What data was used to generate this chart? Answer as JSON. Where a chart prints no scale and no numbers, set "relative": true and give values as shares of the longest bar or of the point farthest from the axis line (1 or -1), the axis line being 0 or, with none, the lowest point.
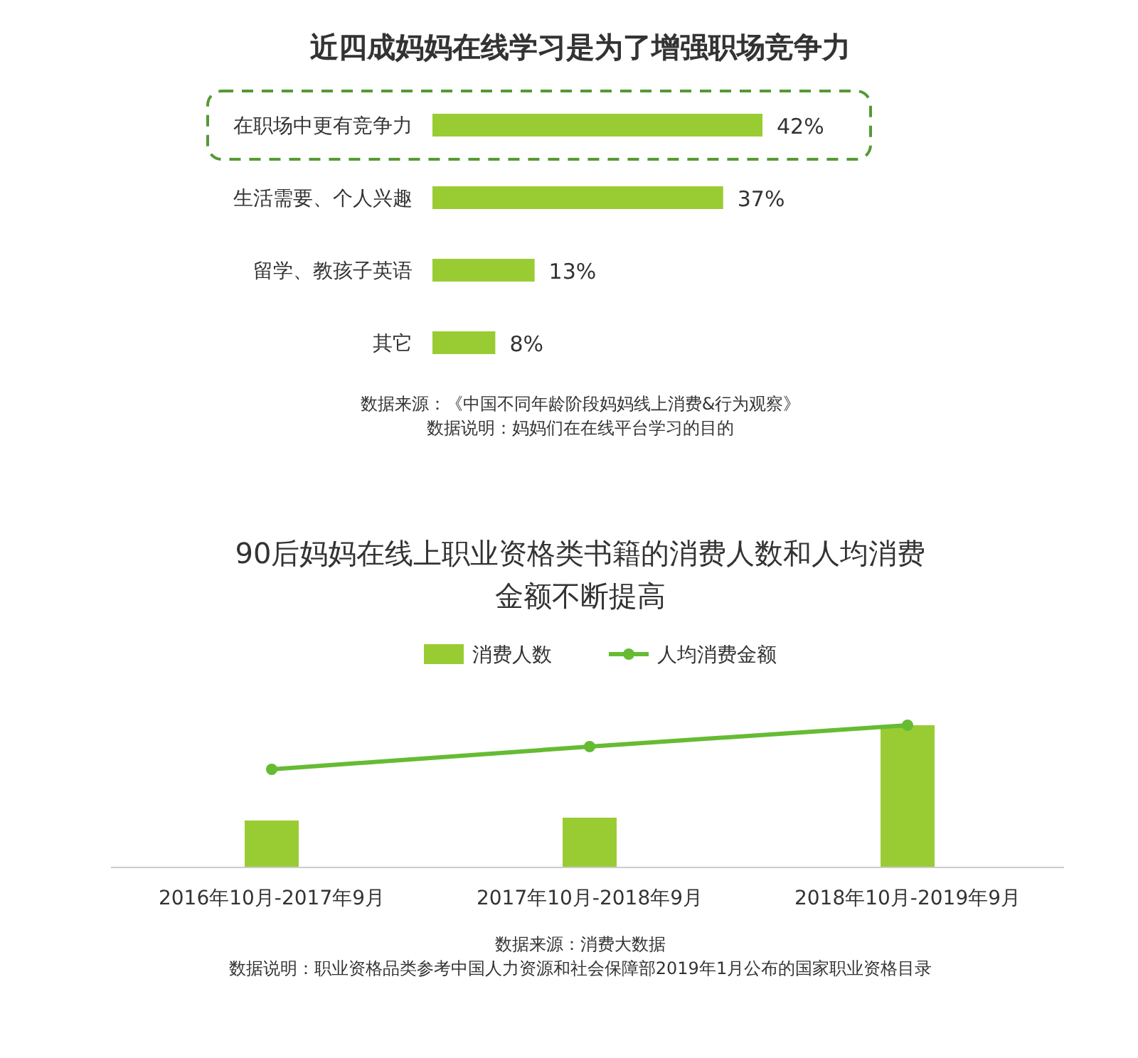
{
  "chart_data": [
    {
      "type": "bar",
      "orientation": "horizontal",
      "title": "近四成妈妈在线学习是为了增强职场竞争力",
      "categories": [
        "在职场中更有竞争力",
        "生活需要、个人兴趣",
        "留学、教孩子英语",
        "其它"
      ],
      "values": [
        42,
        37,
        13,
        8
      ],
      "color": "#99cc33",
      "data_labels": true,
      "value_labels": [
        "42%",
        "37%",
        "13%",
        "8%"
      ],
      "annotations": [
        "数据来源：《中国不同年龄阶段妈妈线上消费&行为观察》",
        "数据说明：妈妈们在在线平台学习的目的"
      ]
    },
    {
      "type": "bar",
      "relative": true,
      "title": "90后妈妈在线上职业资格类书籍的消费人数和人均消费金额不断提高",
      "categories": [
        "2016年10月-2017年9月",
        "2017年10月-2018年9月",
        "2018年10月-2019年9月"
      ],
      "legend": "top",
      "series": [
        {
          "name": "消费人数",
          "color": "#99cc33",
          "values": [
            0.33,
            0.35,
            1
          ]
        },
        {
          "name": "人均消费金额",
          "type": "line",
          "color": "#66bb33",
          "marker": "circle",
          "values": [
            0.69,
            0.85,
            1
          ]
        }
      ],
      "annotations": [
        "数据来源：消费大数据",
        "数据说明：职业资格品类参考中国人力资源和社会保障部2019年1月公布的国家职业资格目录"
      ]
    }
  ]
}
